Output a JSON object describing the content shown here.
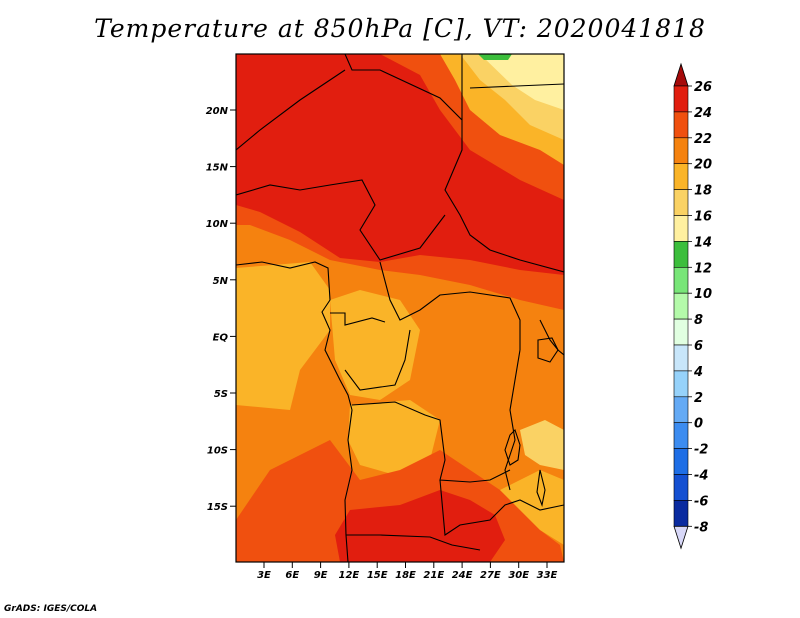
{
  "title": "Temperature at 850hPa [C], VT: 2020041818",
  "credit": "GrADS: IGES/COLA",
  "map": {
    "variable": "Temperature at 850hPa",
    "units": "C",
    "valid_time": "2020041818",
    "lat_ticks": [
      "20N",
      "15N",
      "10N",
      "5N",
      "EQ",
      "5S",
      "10S",
      "15S"
    ],
    "lon_ticks": [
      "3E",
      "6E",
      "9E",
      "12E",
      "15E",
      "18E",
      "21E",
      "24E",
      "27E",
      "30E",
      "33E"
    ]
  },
  "colorbar": {
    "labels": [
      "26",
      "24",
      "22",
      "20",
      "18",
      "16",
      "14",
      "12",
      "10",
      "8",
      "6",
      "4",
      "2",
      "0",
      "-2",
      "-4",
      "-6",
      "-8"
    ],
    "colors": [
      "#a50a0a",
      "#e11e0f",
      "#f0500f",
      "#f5820f",
      "#fab428",
      "#fad264",
      "#fff0a0",
      "#3cbe3c",
      "#78e678",
      "#b4faaa",
      "#e1ffe1",
      "#c8e6fa",
      "#96d2fa",
      "#64aaf5",
      "#3c8cf0",
      "#1e6ee6",
      "#1450d2",
      "#0a2ba0",
      "#00005f",
      "#d8d8f8"
    ]
  }
}
